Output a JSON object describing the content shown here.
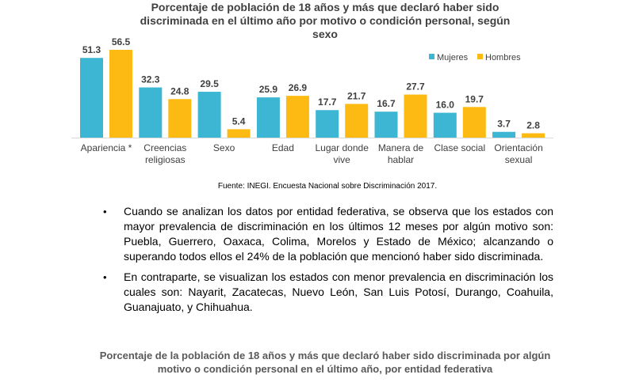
{
  "chart_data": {
    "type": "bar",
    "title": "Porcentaje de población de 18 años y más que declaró haber sido discriminada en el último año por motivo o condición personal, según sexo",
    "categories": [
      [
        "Apariencia *"
      ],
      [
        "Creencias",
        "religiosas"
      ],
      [
        "Sexo"
      ],
      [
        "Edad"
      ],
      [
        "Lugar donde",
        "vive"
      ],
      [
        "Manera de",
        "hablar"
      ],
      [
        "Clase social"
      ],
      [
        "Orientación",
        "sexual"
      ]
    ],
    "series": [
      {
        "name": "Mujeres",
        "color": "#3DB6D3",
        "values": [
          51.3,
          32.3,
          29.5,
          25.9,
          17.7,
          16.7,
          16.0,
          3.7
        ]
      },
      {
        "name": "Hombres",
        "color": "#FDBA13",
        "values": [
          56.5,
          24.8,
          5.4,
          26.9,
          21.7,
          27.7,
          19.7,
          2.8
        ]
      }
    ],
    "ylim": [
      0,
      56.5
    ],
    "legend_position": "top-right",
    "grid": false
  },
  "source": "Fuente: INEGI. Encuesta Nacional sobre Discriminación 2017.",
  "bullet_symbol": "•",
  "bullets": [
    "Cuando se analizan los datos por entidad federativa, se observa que los estados con mayor prevalencia de discriminación en los últimos 12 meses por algún motivo son: Puebla, Guerrero, Oaxaca, Colima, Morelos y Estado de México; alcanzando o superando todos ellos el 24% de la población que mencionó haber sido discriminada.",
    "En contraparte, se visualizan los estados con menor prevalencia en discriminación los cuales son: Nayarit, Zacatecas, Nuevo León, San Luis Potosí, Durango, Coahuila, Guanajuato, y Chihuahua."
  ],
  "bottom_title": "Porcentaje de la población de 18 años y más que declaró haber sido discriminada por algún motivo o condición personal en el último año, por entidad federativa"
}
